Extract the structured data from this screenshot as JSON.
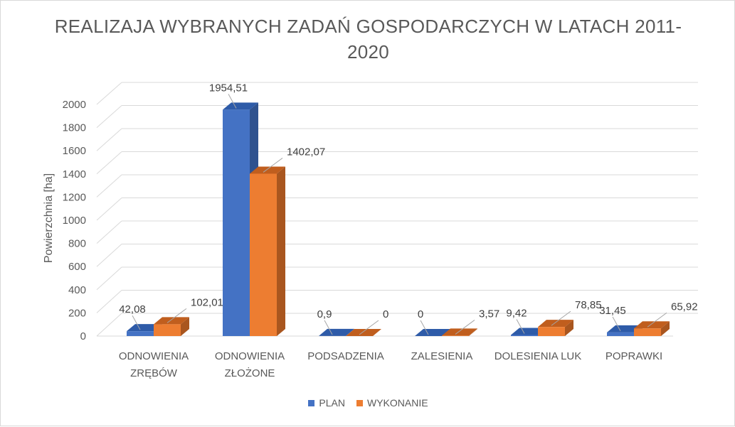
{
  "chart_data": {
    "type": "bar",
    "title_line1": "REALIZAJA WYBRANYCH ZADAŃ GOSPODARCZYCH W LATACH 2011-",
    "title_line2": "2020",
    "ylabel": "Powierzchnia [ha]",
    "xlabel": "",
    "ylim": [
      0,
      2000
    ],
    "yticks": [
      0,
      200,
      400,
      600,
      800,
      1000,
      1200,
      1400,
      1600,
      1800,
      2000
    ],
    "categories": [
      [
        "ODNOWIENIA",
        "ZRĘBÓW"
      ],
      [
        "ODNOWIENIA",
        "ZŁOŻONE"
      ],
      [
        "PODSADZENIA"
      ],
      [
        "ZALESIENIA"
      ],
      [
        "DOLESIENIA LUK"
      ],
      [
        "POPRAWKI"
      ]
    ],
    "series": [
      {
        "name": "PLAN",
        "values": [
          42.08,
          1954.51,
          0.9,
          0,
          9.42,
          31.45
        ],
        "labels": [
          "42,08",
          "1954,51",
          "0,9",
          "0",
          "9,42",
          "31,45"
        ]
      },
      {
        "name": "WYKONANIE",
        "values": [
          102.01,
          1402.07,
          0,
          3.57,
          78.85,
          65.92
        ],
        "labels": [
          "102,01",
          "1402,07",
          "0",
          "3,57",
          "78,85",
          "65,92"
        ]
      }
    ],
    "grid": true,
    "legend_position": "bottom",
    "colors": {
      "plan": "#4472C4",
      "wykonanie": "#ED7D31"
    }
  }
}
